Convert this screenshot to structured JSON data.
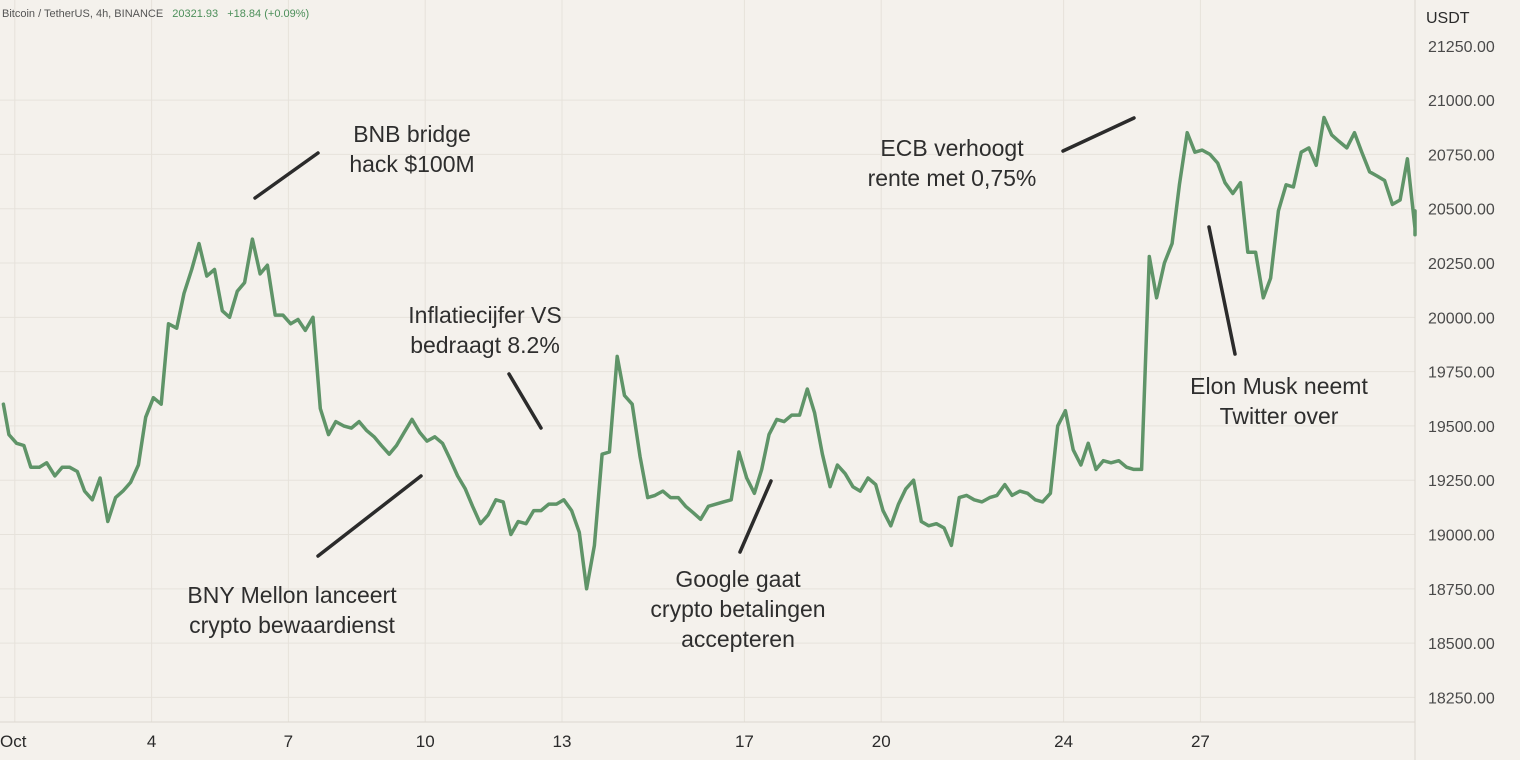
{
  "header": {
    "symbol": "Bitcoin / TetherUS, 4h, BINANCE",
    "last_price": "20321.93",
    "change": "+18.84 (+0.09%)"
  },
  "colors": {
    "background": "#f4f1ec",
    "series": "#5f9468",
    "annotation_line": "#2b2b2b"
  },
  "chart_data": {
    "type": "line",
    "y_unit": "USDT",
    "ylim": [
      18100,
      21230
    ],
    "grid": true,
    "y_ticks": [
      18250,
      18500,
      18750,
      19000,
      19250,
      19500,
      19750,
      20000,
      20250,
      20500,
      20750,
      21000
    ],
    "y_tick_labels": [
      "18250.00",
      "18500.00",
      "18750.00",
      "19000.00",
      "19250.00",
      "19500.00",
      "19750.00",
      "20000.00",
      "20250.00",
      "20500.00",
      "20750.00",
      "21000.00"
    ],
    "x_tick_labels": [
      {
        "label": "Oct",
        "day": 1
      },
      {
        "label": "4",
        "day": 4
      },
      {
        "label": "7",
        "day": 7
      },
      {
        "label": "10",
        "day": 10
      },
      {
        "label": "13",
        "day": 13
      },
      {
        "label": "17",
        "day": 17
      },
      {
        "label": "20",
        "day": 20
      },
      {
        "label": "24",
        "day": 24
      },
      {
        "label": "27",
        "day": 27
      }
    ],
    "series": [
      {
        "x": [
          0.75,
          0.87,
          1.04,
          1.2,
          1.35,
          1.54,
          1.7,
          1.88,
          2.04,
          2.2,
          2.37,
          2.53,
          2.7,
          2.87,
          3.04,
          3.21,
          3.37,
          3.54,
          3.71,
          3.87,
          4.04,
          4.21,
          4.37,
          4.55,
          4.71,
          4.88,
          5.04,
          5.21,
          5.38,
          5.55,
          5.71,
          5.88,
          6.04,
          6.21,
          6.38,
          6.54,
          6.71,
          6.88,
          7.05,
          7.21,
          7.37,
          7.54,
          7.7,
          7.88,
          8.04,
          8.21,
          8.38,
          8.55,
          8.71,
          8.88,
          9.04,
          9.21,
          9.37,
          9.54,
          9.71,
          9.88,
          10.04,
          10.21,
          10.38,
          10.54,
          10.71,
          10.88,
          11.04,
          11.21,
          11.38,
          11.55,
          11.71,
          11.88,
          12.04,
          12.21,
          12.38,
          12.54,
          12.71,
          12.88,
          13.04,
          13.21,
          13.38,
          13.54,
          13.71,
          13.88,
          14.04,
          14.21,
          14.37,
          14.54,
          14.71,
          14.88,
          15.04,
          15.21,
          15.38,
          15.55,
          15.71,
          15.88,
          16.04,
          16.21,
          16.38,
          16.54,
          16.71,
          16.88,
          17.05,
          17.22,
          17.38,
          17.54,
          17.71,
          17.87,
          18.04,
          18.21,
          18.38,
          18.54,
          18.71,
          18.88,
          19.04,
          19.21,
          19.38,
          19.54,
          19.71,
          19.88,
          20.04,
          20.21,
          20.38,
          20.54,
          20.71,
          20.88,
          21.04,
          21.21,
          21.38,
          21.54,
          21.71,
          21.87,
          22.04,
          22.21,
          22.38,
          22.54,
          22.71,
          22.87,
          23.04,
          23.21,
          23.38,
          23.54,
          23.71,
          23.87,
          24.04,
          24.21,
          24.38,
          24.54,
          24.71,
          24.87,
          25.04,
          25.21,
          25.38,
          25.54,
          25.71,
          25.88,
          26.04,
          26.21,
          26.38,
          26.54,
          26.71,
          26.88,
          27.04,
          27.21,
          27.38,
          27.54,
          27.71,
          27.88,
          28.04,
          28.21,
          28.38,
          28.54,
          28.71,
          28.88,
          29.04,
          29.21,
          29.38,
          29.54,
          29.71,
          29.88,
          30.04,
          30.21,
          30.38,
          30.54,
          30.71,
          30.88,
          31.04,
          31.21,
          31.38,
          31.54,
          31.71,
          31.87,
          32.04
        ],
        "values": [
          19600,
          19460,
          19420,
          19410,
          19310,
          19310,
          19330,
          19270,
          19310,
          19310,
          19290,
          19200,
          19160,
          19260,
          19060,
          19170,
          19200,
          19240,
          19320,
          19540,
          19630,
          19600,
          19970,
          19950,
          20110,
          20220,
          20340,
          20190,
          20220,
          20030,
          20000,
          20120,
          20160,
          20360,
          20200,
          20240,
          20010,
          20010,
          19970,
          19990,
          19940,
          20000,
          19580,
          19460,
          19520,
          19500,
          19490,
          19520,
          19480,
          19450,
          19410,
          19370,
          19410,
          19470,
          19530,
          19470,
          19430,
          19450,
          19420,
          19350,
          19270,
          19210,
          19130,
          19050,
          19090,
          19160,
          19150,
          19000,
          19060,
          19050,
          19110,
          19110,
          19140,
          19140,
          19160,
          19110,
          19010,
          18750,
          18950,
          19370,
          19380,
          19820,
          19640,
          19600,
          19360,
          19170,
          19180,
          19200,
          19170,
          19170,
          19130,
          19100,
          19070,
          19130,
          19140,
          19150,
          19160,
          19380,
          19260,
          19190,
          19300,
          19460,
          19530,
          19520,
          19550,
          19550,
          19670,
          19560,
          19370,
          19220,
          19320,
          19280,
          19220,
          19200,
          19260,
          19230,
          19110,
          19040,
          19140,
          19210,
          19250,
          19060,
          19040,
          19050,
          19030,
          18950,
          19170,
          19180,
          19160,
          19150,
          19170,
          19180,
          19230,
          19180,
          19200,
          19190,
          19160,
          19150,
          19190,
          19500,
          19570,
          19390,
          19320,
          19420,
          19300,
          19340,
          19330,
          19340,
          19310,
          19300,
          19300,
          20280,
          20090,
          20250,
          20340,
          20610,
          20850,
          20760,
          20770,
          20750,
          20710,
          20620,
          20570,
          20620,
          20300,
          20300,
          20090,
          20180,
          20490,
          20610,
          20600,
          20760,
          20780,
          20700,
          20920,
          20840,
          20810,
          20780,
          20850,
          20760,
          20670,
          20650,
          20630,
          20520,
          20540,
          20730,
          20410,
          20380,
          20490
        ]
      }
    ],
    "annotations": [
      {
        "lines": [
          "BNB bridge",
          "hack $100M"
        ]
      },
      {
        "lines": [
          "Inflatiecijfer VS",
          "bedraagt 8.2%"
        ]
      },
      {
        "lines": [
          "BNY Mellon lanceert",
          "crypto bewaardienst"
        ]
      },
      {
        "lines": [
          "Google gaat",
          "crypto betalingen",
          "accepteren"
        ]
      },
      {
        "lines": [
          "ECB verhoogt",
          "rente met 0,75%"
        ]
      },
      {
        "lines": [
          "Elon Musk neemt",
          "Twitter over"
        ]
      }
    ]
  }
}
